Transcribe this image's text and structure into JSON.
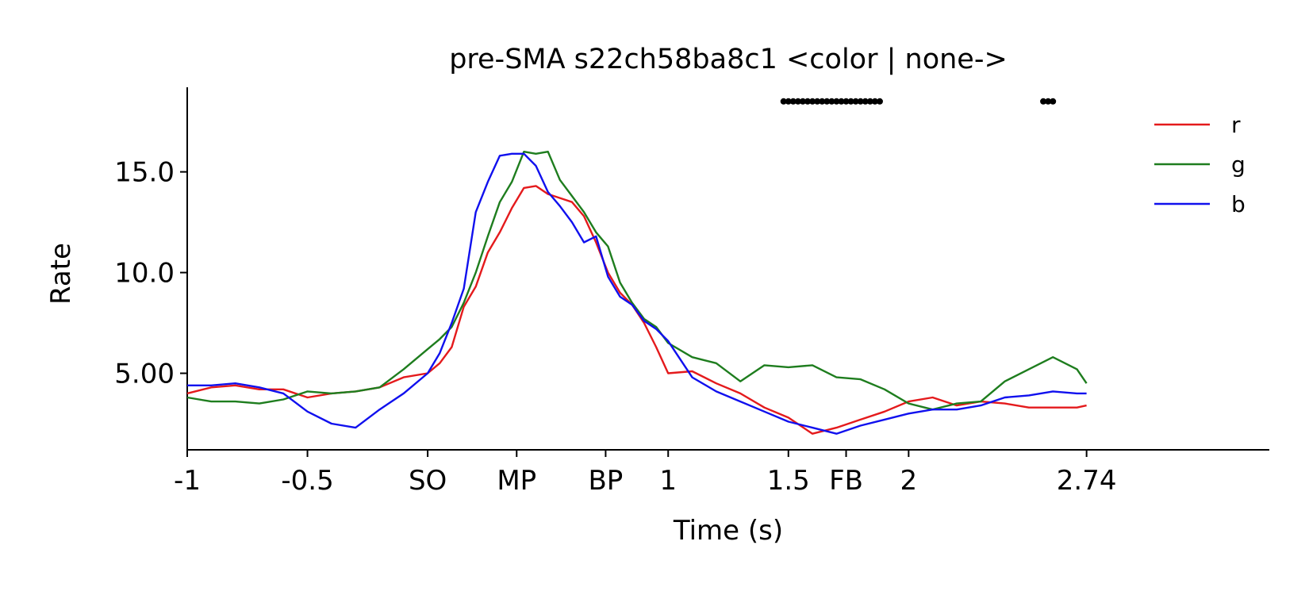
{
  "chart_data": {
    "type": "line",
    "title": "pre-SMA s22ch58ba8c1 <color | none->",
    "xlabel": "Time (s)",
    "ylabel": "Rate",
    "xlim": [
      -1.0,
      3.5
    ],
    "ylim": [
      1.2,
      19.2
    ],
    "xticks": [
      {
        "value": -1.0,
        "label": "-1"
      },
      {
        "value": -0.5,
        "label": "-0.5"
      },
      {
        "value": 0.0,
        "label": "SO"
      },
      {
        "value": 0.37,
        "label": "MP"
      },
      {
        "value": 0.74,
        "label": "BP"
      },
      {
        "value": 1.0,
        "label": "1"
      },
      {
        "value": 1.5,
        "label": "1.5"
      },
      {
        "value": 1.74,
        "label": "FB"
      },
      {
        "value": 2.0,
        "label": "2"
      },
      {
        "value": 2.74,
        "label": "2.74"
      }
    ],
    "yticks": [
      {
        "value": 5.0,
        "label": "5.00"
      },
      {
        "value": 10.0,
        "label": "10.0"
      },
      {
        "value": 15.0,
        "label": "15.0"
      }
    ],
    "grid": false,
    "legend_position": "top-right",
    "x": [
      -1.0,
      -0.9,
      -0.8,
      -0.7,
      -0.6,
      -0.5,
      -0.4,
      -0.3,
      -0.2,
      -0.1,
      0.0,
      0.05,
      0.1,
      0.15,
      0.2,
      0.25,
      0.3,
      0.35,
      0.4,
      0.45,
      0.5,
      0.55,
      0.6,
      0.65,
      0.7,
      0.75,
      0.8,
      0.85,
      0.9,
      0.95,
      1.0,
      1.1,
      1.2,
      1.3,
      1.4,
      1.5,
      1.6,
      1.7,
      1.8,
      1.9,
      2.0,
      2.1,
      2.2,
      2.3,
      2.4,
      2.5,
      2.6,
      2.7,
      2.74
    ],
    "series": [
      {
        "name": "r",
        "color": "#e41a1c",
        "values": [
          4.0,
          4.3,
          4.4,
          4.2,
          4.2,
          3.8,
          4.0,
          4.1,
          4.3,
          4.8,
          5.0,
          5.5,
          6.3,
          8.3,
          9.3,
          11.0,
          12.0,
          13.2,
          14.2,
          14.3,
          13.9,
          13.7,
          13.5,
          12.8,
          11.5,
          10.0,
          9.0,
          8.4,
          7.5,
          6.3,
          5.0,
          5.1,
          4.5,
          4.0,
          3.3,
          2.8,
          2.0,
          2.3,
          2.7,
          3.1,
          3.6,
          3.8,
          3.4,
          3.6,
          3.5,
          3.3,
          3.3,
          3.3,
          3.4
        ]
      },
      {
        "name": "g",
        "color": "#1e7d1e",
        "values": [
          3.8,
          3.6,
          3.6,
          3.5,
          3.7,
          4.1,
          4.0,
          4.1,
          4.3,
          5.2,
          6.2,
          6.7,
          7.3,
          8.5,
          10.0,
          11.8,
          13.5,
          14.5,
          16.0,
          15.9,
          16.0,
          14.6,
          13.8,
          13.0,
          12.0,
          11.3,
          9.5,
          8.5,
          7.7,
          7.3,
          6.5,
          5.8,
          5.5,
          4.6,
          5.4,
          5.3,
          5.4,
          4.8,
          4.7,
          4.2,
          3.5,
          3.2,
          3.5,
          3.6,
          4.6,
          5.2,
          5.8,
          5.2,
          4.5
        ]
      },
      {
        "name": "b",
        "color": "#1010ee",
        "values": [
          4.4,
          4.4,
          4.5,
          4.3,
          4.0,
          3.1,
          2.5,
          2.3,
          3.2,
          4.0,
          5.0,
          6.0,
          7.5,
          9.2,
          13.0,
          14.5,
          15.8,
          15.9,
          15.9,
          15.3,
          14.0,
          13.3,
          12.5,
          11.5,
          11.8,
          9.8,
          8.8,
          8.4,
          7.6,
          7.2,
          6.6,
          4.8,
          4.1,
          3.6,
          3.1,
          2.6,
          2.3,
          2.0,
          2.4,
          2.7,
          3.0,
          3.2,
          3.2,
          3.4,
          3.8,
          3.9,
          4.1,
          4.0,
          4.0
        ]
      }
    ],
    "significance_markers": [
      1.48,
      1.5,
      1.52,
      1.54,
      1.56,
      1.58,
      1.6,
      1.62,
      1.64,
      1.66,
      1.68,
      1.7,
      1.72,
      1.74,
      1.76,
      1.78,
      1.8,
      1.82,
      1.84,
      1.86,
      1.88,
      2.56,
      2.58,
      2.6
    ],
    "significance_level": 18.5
  }
}
